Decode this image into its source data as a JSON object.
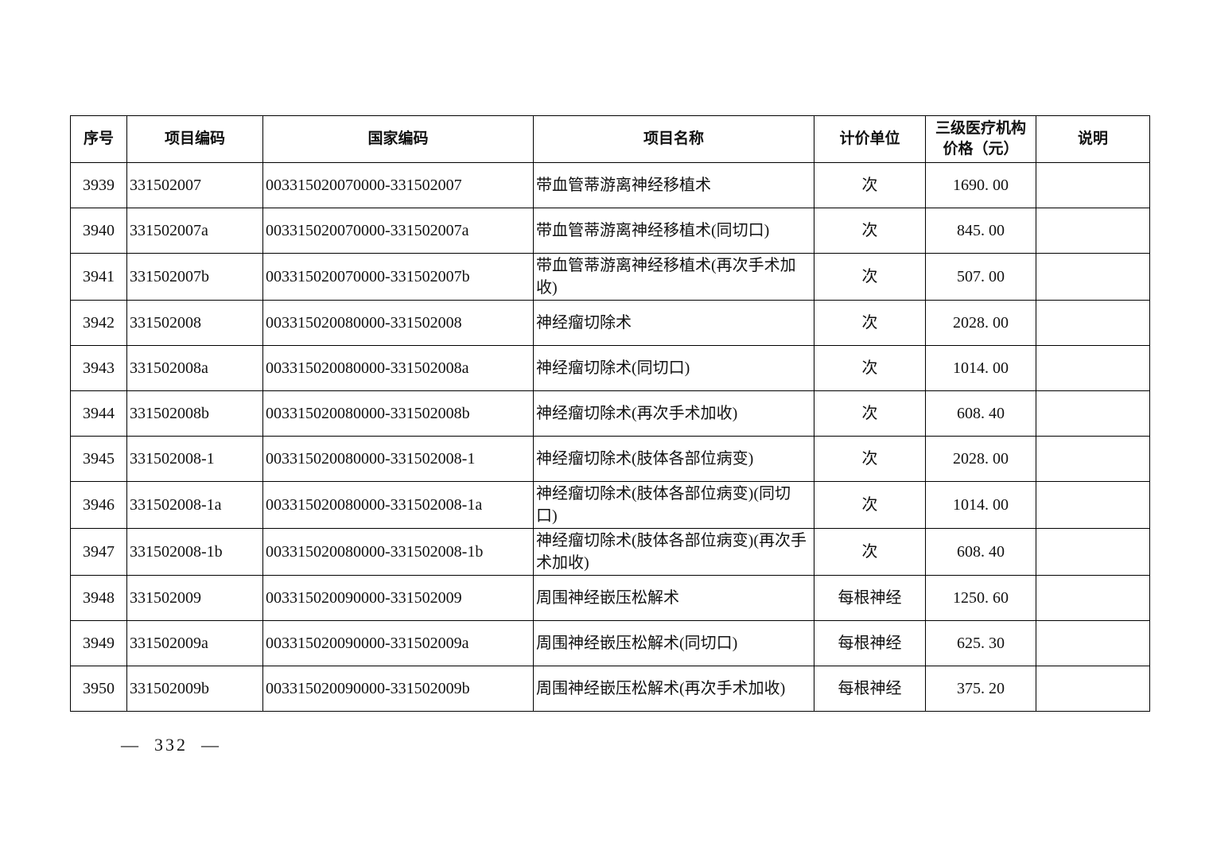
{
  "table": {
    "headers": [
      "序号",
      "项目编码",
      "国家编码",
      "项目名称",
      "计价单位",
      "三级医疗机构价格（元）",
      "说明"
    ],
    "rows": [
      {
        "seq": "3939",
        "item_code": "331502007",
        "national_code": "003315020070000-331502007",
        "name": "带血管蒂游离神经移植术",
        "unit": "次",
        "price": "1690. 00",
        "note": ""
      },
      {
        "seq": "3940",
        "item_code": "331502007a",
        "national_code": "003315020070000-331502007a",
        "name": "带血管蒂游离神经移植术(同切口)",
        "unit": "次",
        "price": "845. 00",
        "note": ""
      },
      {
        "seq": "3941",
        "item_code": "331502007b",
        "national_code": "003315020070000-331502007b",
        "name": "带血管蒂游离神经移植术(再次手术加收)",
        "unit": "次",
        "price": "507. 00",
        "note": ""
      },
      {
        "seq": "3942",
        "item_code": "331502008",
        "national_code": "003315020080000-331502008",
        "name": "神经瘤切除术",
        "unit": "次",
        "price": "2028. 00",
        "note": ""
      },
      {
        "seq": "3943",
        "item_code": "331502008a",
        "national_code": "003315020080000-331502008a",
        "name": "神经瘤切除术(同切口)",
        "unit": "次",
        "price": "1014. 00",
        "note": ""
      },
      {
        "seq": "3944",
        "item_code": "331502008b",
        "national_code": "003315020080000-331502008b",
        "name": "神经瘤切除术(再次手术加收)",
        "unit": "次",
        "price": "608. 40",
        "note": ""
      },
      {
        "seq": "3945",
        "item_code": "331502008-1",
        "national_code": "003315020080000-331502008-1",
        "name": "神经瘤切除术(肢体各部位病变)",
        "unit": "次",
        "price": "2028. 00",
        "note": ""
      },
      {
        "seq": "3946",
        "item_code": "331502008-1a",
        "national_code": "003315020080000-331502008-1a",
        "name": "神经瘤切除术(肢体各部位病变)(同切口)",
        "unit": "次",
        "price": "1014. 00",
        "note": ""
      },
      {
        "seq": "3947",
        "item_code": "331502008-1b",
        "national_code": "003315020080000-331502008-1b",
        "name": "神经瘤切除术(肢体各部位病变)(再次手术加收)",
        "unit": "次",
        "price": "608. 40",
        "note": ""
      },
      {
        "seq": "3948",
        "item_code": "331502009",
        "national_code": "003315020090000-331502009",
        "name": "周围神经嵌压松解术",
        "unit": "每根神经",
        "price": "1250. 60",
        "note": ""
      },
      {
        "seq": "3949",
        "item_code": "331502009a",
        "national_code": "003315020090000-331502009a",
        "name": "周围神经嵌压松解术(同切口)",
        "unit": "每根神经",
        "price": "625. 30",
        "note": ""
      },
      {
        "seq": "3950",
        "item_code": "331502009b",
        "national_code": "003315020090000-331502009b",
        "name": "周围神经嵌压松解术(再次手术加收)",
        "unit": "每根神经",
        "price": "375. 20",
        "note": ""
      }
    ]
  },
  "page": {
    "number": "—  332  —"
  }
}
